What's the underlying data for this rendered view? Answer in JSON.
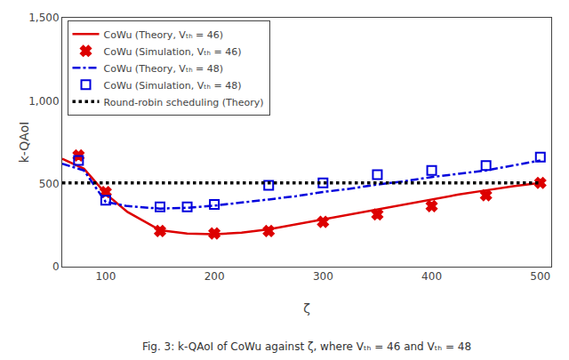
{
  "chart_data": {
    "type": "line",
    "xlabel": "ζ",
    "ylabel": "k-QAoI",
    "annotations": [
      "Fig. 3: k-QAoI of CoWu against ζ, where Vₜₕ = 46 and Vₜₕ = 48"
    ],
    "series": [
      {
        "name": "CoWu (Theory, Vₜₕ = 46)",
        "type": "line",
        "color": "#dd0000",
        "line_style": "solid",
        "x": [
          60,
          80,
          100,
          120,
          150,
          175,
          200,
          225,
          250,
          275,
          300,
          325,
          350,
          375,
          400,
          425,
          450,
          475,
          500
        ],
        "values": [
          650,
          590,
          440,
          330,
          220,
          200,
          195,
          205,
          225,
          255,
          285,
          315,
          345,
          375,
          405,
          435,
          460,
          485,
          505
        ]
      },
      {
        "name": "CoWu (Simulation, Vₜₕ = 46)",
        "type": "scatter",
        "color": "#dd0000",
        "marker": "x",
        "x": [
          75,
          100,
          150,
          200,
          250,
          300,
          350,
          400,
          450,
          500
        ],
        "values": [
          670,
          450,
          215,
          200,
          215,
          270,
          315,
          365,
          430,
          505
        ]
      },
      {
        "name": "CoWu (Theory, Vₜₕ = 48)",
        "type": "line",
        "color": "#0000dd",
        "line_style": "dashdot",
        "x": [
          60,
          80,
          100,
          120,
          150,
          175,
          200,
          225,
          250,
          275,
          300,
          325,
          350,
          375,
          400,
          425,
          450,
          475,
          500
        ],
        "values": [
          620,
          580,
          390,
          365,
          350,
          355,
          368,
          385,
          405,
          425,
          450,
          470,
          495,
          515,
          540,
          560,
          580,
          610,
          640
        ]
      },
      {
        "name": "CoWu (Simulation, Vₜₕ = 48)",
        "type": "scatter",
        "color": "#0000dd",
        "marker": "square-open",
        "x": [
          75,
          100,
          150,
          175,
          200,
          250,
          300,
          350,
          400,
          450,
          500
        ],
        "values": [
          640,
          400,
          360,
          360,
          375,
          490,
          505,
          555,
          580,
          610,
          660
        ]
      },
      {
        "name": "Round-robin scheduling (Theory)",
        "type": "line",
        "color": "#000000",
        "line_style": "dotted",
        "x": [
          60,
          500
        ],
        "values": [
          505,
          505
        ]
      }
    ],
    "xlim": [
      60,
      510
    ],
    "ylim": [
      0,
      1500
    ],
    "xticks": [
      100,
      200,
      300,
      400,
      500
    ],
    "yticks": [
      0,
      500,
      {
        "value": 1000,
        "label": "1,000"
      },
      {
        "value": 1500,
        "label": "1,500"
      }
    ],
    "grid": false,
    "legend": "upper left"
  }
}
